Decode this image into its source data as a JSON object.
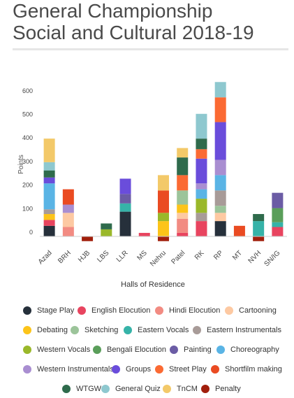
{
  "title_lines": [
    "General Championship",
    "Social and Cultural 2018-19"
  ],
  "chart_data": {
    "type": "bar",
    "stacked": true,
    "xlabel": "Halls of Residence",
    "ylabel": "Points",
    "ylim": [
      -40,
      670
    ],
    "yticks": [
      0,
      100,
      200,
      300,
      400,
      500,
      600
    ],
    "grid": false,
    "legend_position": "bottom",
    "categories": [
      "Azad",
      "BRH",
      "HJB",
      "LBS",
      "LLR",
      "MS",
      "Nehru",
      "Patel",
      "RK",
      "RP",
      "MT",
      "NVH",
      "SN/IG"
    ],
    "series": [
      {
        "name": "Stage Play",
        "color": "#26303b",
        "values": [
          45,
          0,
          0,
          0,
          105,
          0,
          0,
          0,
          0,
          65,
          0,
          0,
          0
        ]
      },
      {
        "name": "English Elocution",
        "color": "#e8445f",
        "values": [
          25,
          0,
          0,
          0,
          0,
          15,
          0,
          15,
          65,
          0,
          0,
          0,
          40
        ]
      },
      {
        "name": "Hindi Elocution",
        "color": "#f28b82",
        "values": [
          0,
          40,
          0,
          0,
          0,
          0,
          0,
          60,
          0,
          0,
          0,
          0,
          0
        ]
      },
      {
        "name": "Cartooning",
        "color": "#fdc9a2",
        "values": [
          0,
          60,
          0,
          0,
          0,
          0,
          0,
          25,
          0,
          35,
          0,
          0,
          0
        ]
      },
      {
        "name": "Debating",
        "color": "#fcc419",
        "values": [
          25,
          0,
          0,
          0,
          0,
          0,
          65,
          35,
          0,
          0,
          0,
          0,
          0
        ]
      },
      {
        "name": "Sketching",
        "color": "#9cc49a",
        "values": [
          0,
          0,
          0,
          0,
          0,
          0,
          0,
          60,
          0,
          30,
          0,
          0,
          0
        ]
      },
      {
        "name": "Eastern Vocals",
        "color": "#36b3a8",
        "values": [
          0,
          0,
          0,
          0,
          35,
          0,
          0,
          0,
          0,
          0,
          0,
          65,
          20
        ]
      },
      {
        "name": "Eastern Instrumentals",
        "color": "#a89b98",
        "values": [
          20,
          0,
          0,
          0,
          0,
          0,
          0,
          0,
          35,
          65,
          0,
          0,
          0
        ]
      },
      {
        "name": "Western Vocals",
        "color": "#9ab82a",
        "values": [
          0,
          0,
          0,
          30,
          0,
          0,
          35,
          0,
          60,
          0,
          0,
          0,
          0
        ]
      },
      {
        "name": "Bengali Elocution",
        "color": "#5a9e5a",
        "values": [
          0,
          0,
          0,
          0,
          0,
          0,
          0,
          0,
          0,
          0,
          0,
          0,
          60
        ]
      },
      {
        "name": "Painting",
        "color": "#6b5ca5",
        "values": [
          0,
          0,
          0,
          0,
          40,
          0,
          0,
          0,
          0,
          0,
          0,
          0,
          65
        ]
      },
      {
        "name": "Choreography",
        "color": "#5ab4e5",
        "values": [
          110,
          0,
          0,
          0,
          0,
          0,
          0,
          0,
          40,
          65,
          0,
          0,
          0
        ]
      },
      {
        "name": "Western Instrumentals",
        "color": "#a98ed1",
        "values": [
          0,
          35,
          0,
          0,
          0,
          0,
          0,
          0,
          25,
          65,
          0,
          0,
          0
        ]
      },
      {
        "name": "Groups",
        "color": "#6a4ddb",
        "values": [
          25,
          0,
          0,
          0,
          65,
          0,
          0,
          0,
          105,
          160,
          0,
          0,
          0
        ]
      },
      {
        "name": "Street Play",
        "color": "#fb6a33",
        "values": [
          0,
          0,
          0,
          0,
          0,
          0,
          0,
          65,
          40,
          105,
          0,
          0,
          0
        ]
      },
      {
        "name": "Shortfilm making",
        "color": "#ea4b22",
        "values": [
          0,
          65,
          0,
          0,
          0,
          0,
          95,
          0,
          0,
          0,
          45,
          0,
          0
        ]
      },
      {
        "name": "WTGW",
        "color": "#2f6b4c",
        "values": [
          30,
          0,
          0,
          25,
          0,
          0,
          0,
          75,
          45,
          0,
          0,
          30,
          0
        ]
      },
      {
        "name": "General Quiz",
        "color": "#8ec8cf",
        "values": [
          35,
          0,
          0,
          0,
          0,
          0,
          0,
          0,
          105,
          65,
          0,
          0,
          0
        ]
      },
      {
        "name": "TnCM",
        "color": "#f3c969",
        "values": [
          100,
          0,
          0,
          0,
          0,
          0,
          65,
          40,
          0,
          0,
          0,
          0,
          0
        ]
      },
      {
        "name": "Penalty",
        "color": "#a11f0c",
        "values": [
          0,
          0,
          -20,
          0,
          0,
          0,
          -20,
          0,
          0,
          0,
          0,
          -20,
          0
        ]
      }
    ]
  }
}
